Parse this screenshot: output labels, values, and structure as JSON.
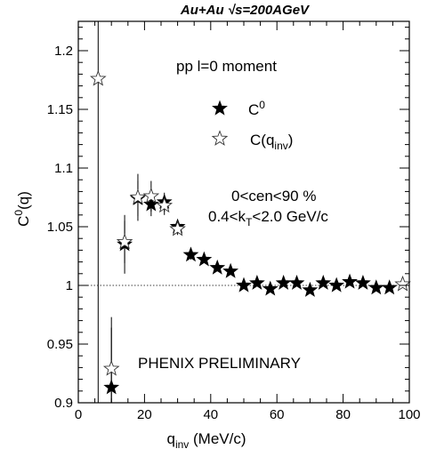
{
  "chart_data": {
    "type": "scatter",
    "title": "Au+Au √s=200AGeV",
    "xlabel": "q",
    "xlabel_sub": "inv",
    "xlabel_unit": " (MeV/c)",
    "ylabel": "C",
    "ylabel_sup": "0",
    "ylabel_suffix": "(q)",
    "xlim": [
      0,
      100
    ],
    "ylim": [
      0.9,
      1.225
    ],
    "x_ticks": [
      0,
      20,
      40,
      60,
      80,
      100
    ],
    "y_ticks": [
      0.9,
      0.95,
      1,
      1.05,
      1.1,
      1.15,
      1.2
    ],
    "y_tick_labels": [
      "0.9",
      "0.95",
      "1",
      "1.05",
      "1.1",
      "1.15",
      "1.2"
    ],
    "reference_line": 1.0,
    "legend": {
      "header": "pp  l=0 moment",
      "c0_label": "C",
      "c0_sup": "0",
      "cq_label": "C(q",
      "cq_sub": "inv",
      "cq_close": ")"
    },
    "annotations": {
      "centrality": "0<cen<90 %",
      "kt_pre": "0.4<k",
      "kt_sub": "T",
      "kt_post": "<2.0 GeV/c",
      "preliminary": "PHENIX PRELIMINARY"
    },
    "series": [
      {
        "name": "C0",
        "marker": "filled-star",
        "points": [
          {
            "x": 10,
            "y": 0.913,
            "err": 0.06
          },
          {
            "x": 14,
            "y": 1.035,
            "err": 0.025
          },
          {
            "x": 18,
            "y": 1.074,
            "err": 0.015
          },
          {
            "x": 22,
            "y": 1.069,
            "err": 0.01
          },
          {
            "x": 26,
            "y": 1.071,
            "err": 0.008
          },
          {
            "x": 30,
            "y": 1.05,
            "err": 0.005
          },
          {
            "x": 34,
            "y": 1.026,
            "err": 0.004
          },
          {
            "x": 38,
            "y": 1.022,
            "err": 0.003
          },
          {
            "x": 42,
            "y": 1.015,
            "err": 0.003
          },
          {
            "x": 46,
            "y": 1.012,
            "err": 0.002
          },
          {
            "x": 50,
            "y": 1.0,
            "err": 0.002
          },
          {
            "x": 54,
            "y": 1.002,
            "err": 0.002
          },
          {
            "x": 58,
            "y": 0.997,
            "err": 0.002
          },
          {
            "x": 62,
            "y": 1.002,
            "err": 0.002
          },
          {
            "x": 66,
            "y": 1.002,
            "err": 0.002
          },
          {
            "x": 70,
            "y": 0.996,
            "err": 0.002
          },
          {
            "x": 74,
            "y": 1.002,
            "err": 0.002
          },
          {
            "x": 78,
            "y": 1.0,
            "err": 0.002
          },
          {
            "x": 82,
            "y": 1.003,
            "err": 0.002
          },
          {
            "x": 86,
            "y": 1.002,
            "err": 0.002
          },
          {
            "x": 90,
            "y": 0.998,
            "err": 0.002
          },
          {
            "x": 94,
            "y": 0.998,
            "err": 0.002
          }
        ]
      },
      {
        "name": "C(qinv)",
        "marker": "open-star",
        "points": [
          {
            "x": 6,
            "y": 1.176,
            "err": 0.5
          },
          {
            "x": 10,
            "y": 0.929,
            "err": 0.035
          },
          {
            "x": 14,
            "y": 1.037,
            "err": 0.018
          },
          {
            "x": 18,
            "y": 1.075,
            "err": 0.02
          },
          {
            "x": 22,
            "y": 1.076,
            "err": 0.013
          },
          {
            "x": 26,
            "y": 1.068,
            "err": 0.008
          },
          {
            "x": 30,
            "y": 1.048,
            "err": 0.005
          },
          {
            "x": 98,
            "y": 1.001,
            "err": 0.003
          }
        ]
      }
    ]
  }
}
